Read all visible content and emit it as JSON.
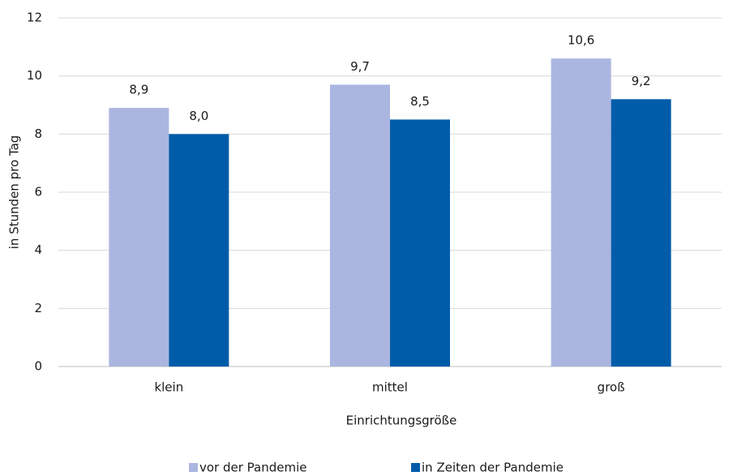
{
  "chart_data": {
    "type": "bar",
    "categories": [
      "klein",
      "mittel",
      "groß"
    ],
    "series": [
      {
        "name": "vor der Pandemie",
        "color": "#aab6e0",
        "values": [
          8.9,
          9.7,
          10.6
        ],
        "value_labels": [
          "8,9",
          "9,7",
          "10,6"
        ]
      },
      {
        "name": "in Zeiten der Pandemie",
        "color": "#005ca9",
        "values": [
          8.0,
          8.5,
          9.2
        ],
        "value_labels": [
          "8,0",
          "8,5",
          "9,2"
        ]
      }
    ],
    "x_label": "Einrichtungsgröße",
    "y_label": "in Stunden pro Tag",
    "ylim": [
      0,
      12
    ],
    "yticks": [
      0,
      2,
      4,
      6,
      8,
      10,
      12
    ],
    "grid": true,
    "legend": "bottom"
  }
}
